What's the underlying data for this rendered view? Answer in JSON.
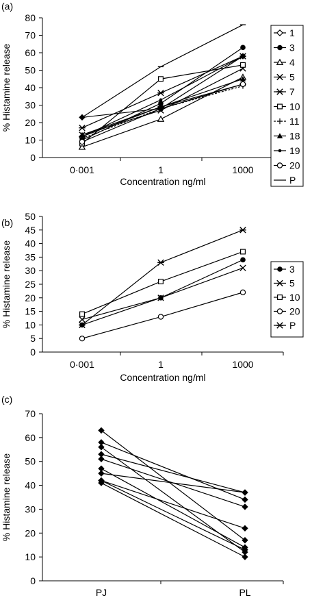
{
  "chart_data": [
    {
      "panel_label": "(a)",
      "type": "line",
      "xlabel": "Concentration ng/ml",
      "ylabel": "% Histamine release",
      "categories": [
        "0·001",
        "1",
        "1000"
      ],
      "ylim": [
        0,
        80
      ],
      "yticks": [
        0,
        10,
        20,
        30,
        40,
        50,
        60,
        70,
        80
      ],
      "legend": "right",
      "series": [
        {
          "name": "1",
          "marker": "diamond-open",
          "dashed": false,
          "values": [
            12,
            29,
            42
          ]
        },
        {
          "name": "3",
          "marker": "circle-filled",
          "dashed": false,
          "values": [
            10,
            31,
            63
          ]
        },
        {
          "name": "4",
          "marker": "triangle-open",
          "dashed": false,
          "values": [
            6,
            22,
            46
          ]
        },
        {
          "name": "5",
          "marker": "x",
          "dashed": false,
          "values": [
            13,
            27,
            51
          ]
        },
        {
          "name": "7",
          "marker": "star",
          "dashed": false,
          "values": [
            17,
            37,
            58
          ]
        },
        {
          "name": "10",
          "marker": "square-open",
          "dashed": false,
          "values": [
            8,
            45,
            53
          ]
        },
        {
          "name": "11",
          "marker": "plus",
          "dashed": true,
          "values": [
            11,
            28,
            41
          ]
        },
        {
          "name": "18",
          "marker": "triangle-filled",
          "dashed": false,
          "values": [
            13,
            29,
            45
          ]
        },
        {
          "name": "19",
          "marker": "dot-small",
          "dashed": false,
          "values": [
            12,
            33,
            58
          ]
        },
        {
          "name": "20",
          "marker": "circle-open",
          "dashed": false,
          "values": [
            9,
            28,
            42
          ]
        },
        {
          "name": "P",
          "marker": "dash",
          "dashed": false,
          "values": [
            23,
            52,
            76
          ]
        }
      ],
      "extra_lines": [
        {
          "values": [
            23,
            28,
            58
          ],
          "marker": "diamond-filled"
        }
      ]
    },
    {
      "panel_label": "(b)",
      "type": "line",
      "xlabel": "Concentration ng/ml",
      "ylabel": "% Histamine release",
      "categories": [
        "0·001",
        "1",
        "1000"
      ],
      "ylim": [
        0,
        50
      ],
      "yticks": [
        0,
        5,
        10,
        15,
        20,
        25,
        30,
        35,
        40,
        45,
        50
      ],
      "legend": "right",
      "series": [
        {
          "name": "3",
          "marker": "circle-filled",
          "dashed": false,
          "values": [
            10,
            20,
            34
          ]
        },
        {
          "name": "5",
          "marker": "x",
          "dashed": false,
          "values": [
            12,
            20,
            31
          ]
        },
        {
          "name": "10",
          "marker": "square-open",
          "dashed": false,
          "values": [
            14,
            26,
            37
          ]
        },
        {
          "name": "20",
          "marker": "circle-open",
          "dashed": false,
          "values": [
            5,
            13,
            22
          ]
        },
        {
          "name": "P",
          "marker": "star",
          "dashed": false,
          "values": [
            10,
            33,
            45
          ]
        }
      ]
    },
    {
      "panel_label": "(c)",
      "type": "line",
      "xlabel": "",
      "ylabel": "% Histamine release",
      "categories": [
        "PJ",
        "PL"
      ],
      "ylim": [
        0,
        70
      ],
      "yticks": [
        0,
        10,
        20,
        30,
        40,
        50,
        60,
        70
      ],
      "pairs": [
        [
          63,
          17
        ],
        [
          58,
          34
        ],
        [
          56,
          12
        ],
        [
          53,
          37
        ],
        [
          51,
          31
        ],
        [
          47,
          14
        ],
        [
          45,
          37
        ],
        [
          42,
          22
        ],
        [
          42,
          13
        ],
        [
          41,
          10
        ]
      ]
    }
  ]
}
